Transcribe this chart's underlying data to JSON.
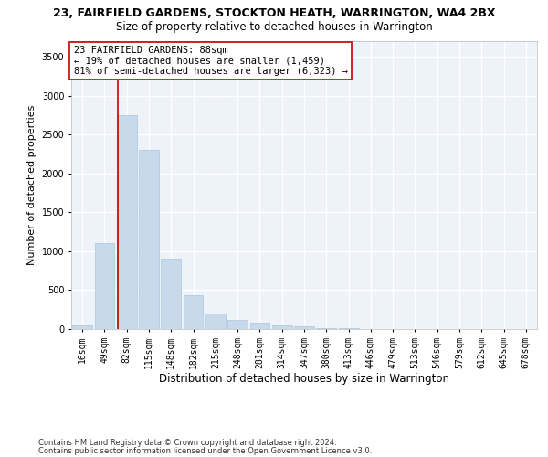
{
  "title": "23, FAIRFIELD GARDENS, STOCKTON HEATH, WARRINGTON, WA4 2BX",
  "subtitle": "Size of property relative to detached houses in Warrington",
  "xlabel": "Distribution of detached houses by size in Warrington",
  "ylabel": "Number of detached properties",
  "categories": [
    "16sqm",
    "49sqm",
    "82sqm",
    "115sqm",
    "148sqm",
    "182sqm",
    "215sqm",
    "248sqm",
    "281sqm",
    "314sqm",
    "347sqm",
    "380sqm",
    "413sqm",
    "446sqm",
    "479sqm",
    "513sqm",
    "546sqm",
    "579sqm",
    "612sqm",
    "645sqm",
    "678sqm"
  ],
  "values": [
    50,
    1100,
    2750,
    2300,
    900,
    430,
    200,
    120,
    80,
    50,
    30,
    15,
    8,
    3,
    2,
    1,
    1,
    0,
    0,
    0,
    0
  ],
  "bar_color": "#c9d9ec",
  "bar_edgecolor": "#a8c4de",
  "vline_color": "#cc0000",
  "annotation_text": "23 FAIRFIELD GARDENS: 88sqm\n← 19% of detached houses are smaller (1,459)\n81% of semi-detached houses are larger (6,323) →",
  "annotation_box_facecolor": "#ffffff",
  "annotation_box_edgecolor": "#cc0000",
  "ylim": [
    0,
    3700
  ],
  "yticks": [
    0,
    500,
    1000,
    1500,
    2000,
    2500,
    3000,
    3500
  ],
  "footer_line1": "Contains HM Land Registry data © Crown copyright and database right 2024.",
  "footer_line2": "Contains public sector information licensed under the Open Government Licence v3.0.",
  "background_color": "#eef2f9",
  "grid_color": "#ffffff",
  "title_fontsize": 9,
  "subtitle_fontsize": 8.5,
  "xlabel_fontsize": 8.5,
  "ylabel_fontsize": 8,
  "tick_fontsize": 7,
  "annotation_fontsize": 7.5,
  "footer_fontsize": 6
}
